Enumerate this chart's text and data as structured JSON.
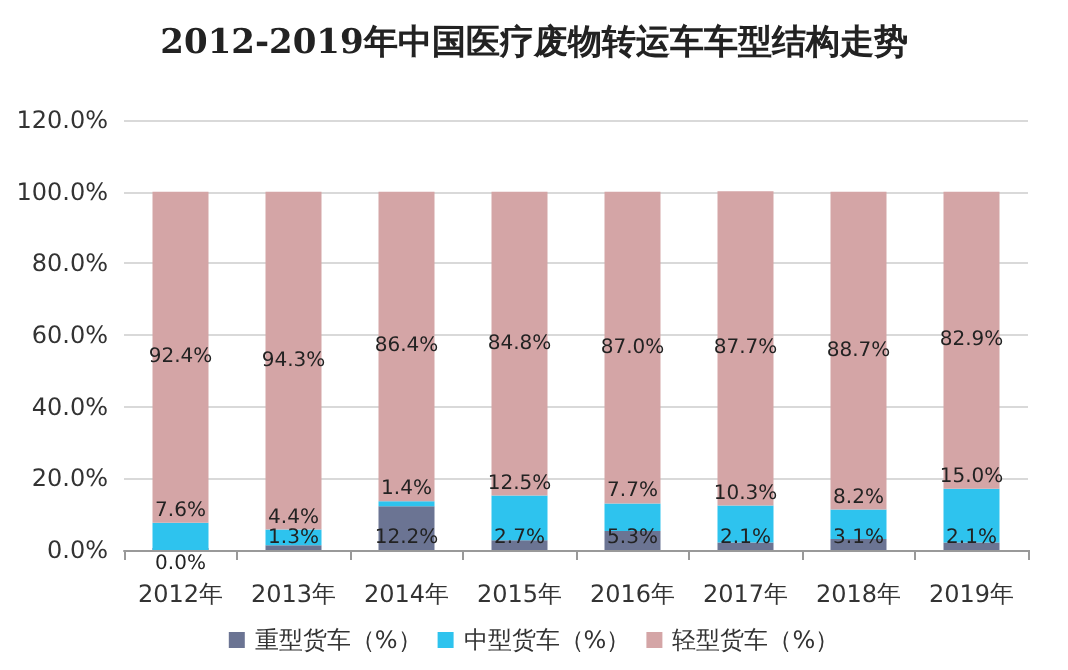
{
  "chart_data": {
    "type": "bar",
    "title": "2012-2019年中国医疗废物转运车车型结构走势",
    "categories": [
      "2012年",
      "2013年",
      "2014年",
      "2015年",
      "2016年",
      "2017年",
      "2018年",
      "2019年"
    ],
    "stacked": true,
    "series": [
      {
        "name": "重型货车（%）",
        "color": "#6b7493",
        "values": [
          0.0,
          1.3,
          12.2,
          2.7,
          5.3,
          2.1,
          3.1,
          2.1
        ],
        "value_labels": [
          "0.0%",
          "1.3%",
          "12.2%",
          "2.7%",
          "5.3%",
          "2.1%",
          "3.1%",
          "2.1%"
        ]
      },
      {
        "name": "中型货车（%）",
        "color": "#2ec3ee",
        "values": [
          7.6,
          4.4,
          1.4,
          12.5,
          7.7,
          10.3,
          8.2,
          15.0
        ],
        "value_labels": [
          "7.6%",
          "4.4%",
          "1.4%",
          "12.5%",
          "7.7%",
          "10.3%",
          "8.2%",
          "15.0%"
        ]
      },
      {
        "name": "轻型货车（%）",
        "color": "#d4a5a6",
        "values": [
          92.4,
          94.3,
          86.4,
          84.8,
          87.0,
          87.7,
          88.7,
          82.9
        ],
        "value_labels": [
          "92.4%",
          "94.3%",
          "86.4%",
          "84.8%",
          "87.0%",
          "87.7%",
          "88.7%",
          "82.9%"
        ]
      }
    ],
    "ylim": [
      0,
      120
    ],
    "yticks": [
      {
        "value": 0,
        "label": "0.0%"
      },
      {
        "value": 20,
        "label": "20.0%"
      },
      {
        "value": 40,
        "label": "40.0%"
      },
      {
        "value": 60,
        "label": "60.0%"
      },
      {
        "value": 80,
        "label": "80.0%"
      },
      {
        "value": 100,
        "label": "100.0%"
      },
      {
        "value": 120,
        "label": "120.0%"
      }
    ],
    "grid": "y",
    "legend": "bottom"
  }
}
